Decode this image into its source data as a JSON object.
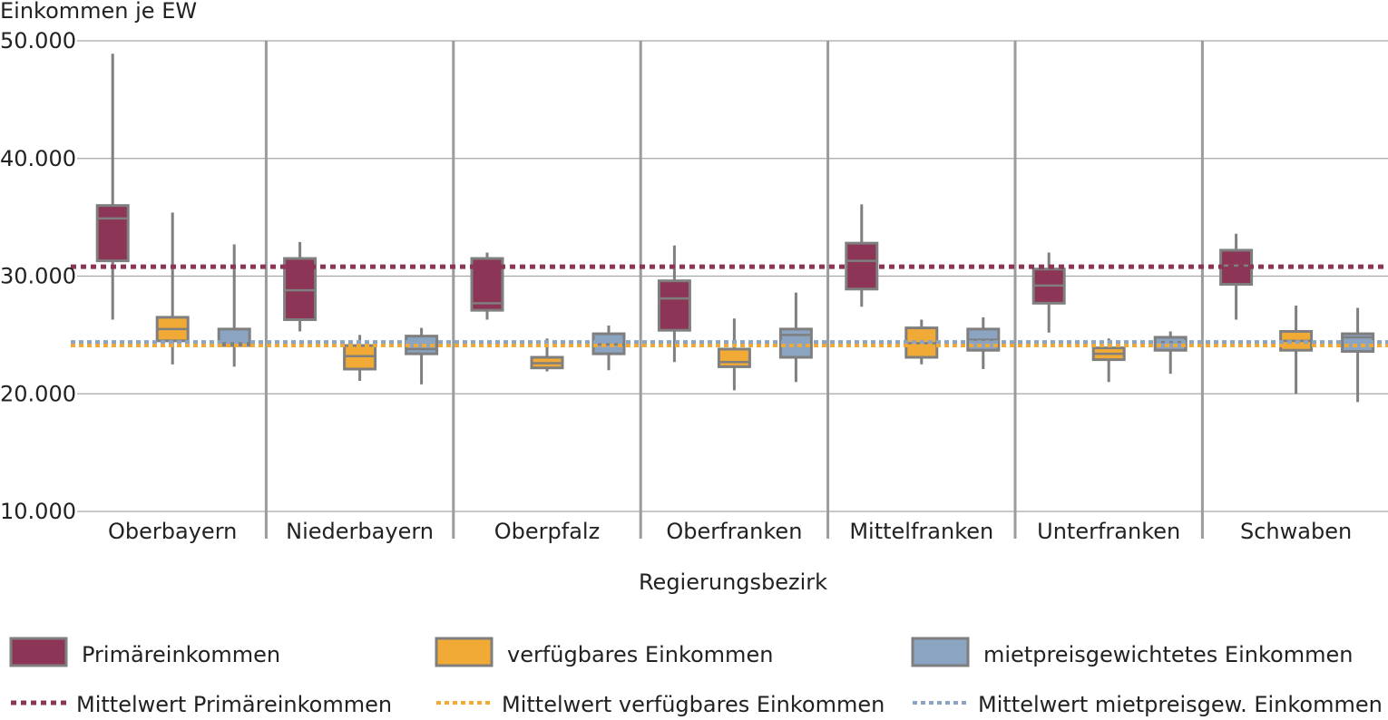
{
  "chart_data": {
    "type": "boxplot",
    "ylabel": "Einkommen je EW",
    "xlabel": "Regierungsbezirk",
    "ylim": [
      10000,
      50000
    ],
    "yticks": [
      10000,
      20000,
      30000,
      40000,
      50000
    ],
    "ytick_labels": [
      "10.000",
      "20.000",
      "30.000",
      "40.000",
      "50.000"
    ],
    "grid": true,
    "categories": [
      "Oberbayern",
      "Niederbayern",
      "Oberpfalz",
      "Oberfranken",
      "Mittelfranken",
      "Unterfranken",
      "Schwaben"
    ],
    "series": [
      {
        "name": "Primäreinkommen",
        "color": "#8c3556",
        "boxes": [
          {
            "min": 26300,
            "q1": 31300,
            "median": 34900,
            "q3": 36000,
            "max": 48900
          },
          {
            "min": 25300,
            "q1": 26300,
            "median": 28800,
            "q3": 31500,
            "max": 32900
          },
          {
            "min": 26300,
            "q1": 27100,
            "median": 27700,
            "q3": 31500,
            "max": 32000
          },
          {
            "min": 22700,
            "q1": 25400,
            "median": 28100,
            "q3": 29600,
            "max": 32600
          },
          {
            "min": 27400,
            "q1": 28900,
            "median": 31300,
            "q3": 32800,
            "max": 36100
          },
          {
            "min": 25200,
            "q1": 27700,
            "median": 29200,
            "q3": 30600,
            "max": 32000
          },
          {
            "min": 26300,
            "q1": 29300,
            "median": 30900,
            "q3": 32200,
            "max": 33600
          }
        ]
      },
      {
        "name": "verfügbares Einkommen",
        "color": "#f2aa36",
        "boxes": [
          {
            "min": 22500,
            "q1": 24500,
            "median": 25500,
            "q3": 26500,
            "max": 35400
          },
          {
            "min": 21100,
            "q1": 22100,
            "median": 23200,
            "q3": 24100,
            "max": 25000
          },
          {
            "min": 21900,
            "q1": 22200,
            "median": 22600,
            "q3": 23100,
            "max": 24700
          },
          {
            "min": 20300,
            "q1": 22300,
            "median": 22700,
            "q3": 23800,
            "max": 26400
          },
          {
            "min": 22500,
            "q1": 23100,
            "median": 24300,
            "q3": 25600,
            "max": 26300
          },
          {
            "min": 21000,
            "q1": 22900,
            "median": 23400,
            "q3": 23900,
            "max": 24700
          },
          {
            "min": 20000,
            "q1": 23700,
            "median": 24500,
            "q3": 25300,
            "max": 27500
          }
        ]
      },
      {
        "name": "mietpreisgewichtetes Einkommen",
        "color": "#8aa4c2",
        "boxes": [
          {
            "min": 22300,
            "q1": 24100,
            "median": 24300,
            "q3": 25500,
            "max": 32700
          },
          {
            "min": 20800,
            "q1": 23400,
            "median": 23800,
            "q3": 24900,
            "max": 25600
          },
          {
            "min": 22000,
            "q1": 23400,
            "median": 24200,
            "q3": 25100,
            "max": 25800
          },
          {
            "min": 21000,
            "q1": 23100,
            "median": 25000,
            "q3": 25500,
            "max": 28600
          },
          {
            "min": 22100,
            "q1": 23700,
            "median": 24600,
            "q3": 25500,
            "max": 26500
          },
          {
            "min": 21700,
            "q1": 23700,
            "median": 24400,
            "q3": 24800,
            "max": 25300
          },
          {
            "min": 19300,
            "q1": 23600,
            "median": 24800,
            "q3": 25100,
            "max": 27300
          }
        ]
      }
    ],
    "reference_lines": [
      {
        "name": "Mittelwert Primäreinkommen",
        "value": 30800,
        "color": "#8c3556"
      },
      {
        "name": "Mittelwert verfügbares Einkommen",
        "value": 24100,
        "color": "#f2aa36"
      },
      {
        "name": "Mittelwert mietpreisgew. Einkommen",
        "value": 24400,
        "color": "#8aa4c2"
      }
    ],
    "legend": {
      "placement": "bottom",
      "box_items": [
        "Primäreinkommen",
        "verfügbares Einkommen",
        "mietpreisgewichtetes Einkommen"
      ],
      "line_items": [
        "Mittelwert Primäreinkommen",
        "Mittelwert verfügbares Einkommen",
        "Mittelwert mietpreisgew. Einkommen"
      ]
    }
  }
}
